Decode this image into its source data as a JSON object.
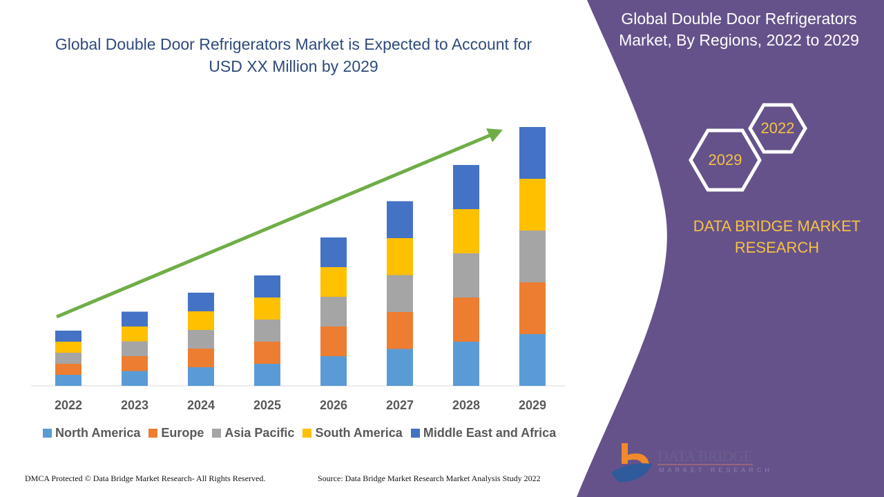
{
  "title": "Global Double Door Refrigerators Market is Expected to Account for USD XX Million by 2029",
  "side_panel": {
    "title": "Global Double Door Refrigerators Market, By Regions, 2022 to 2029",
    "hex_labels": [
      "2022",
      "2029"
    ],
    "brand": "DATA BRIDGE MARKET RESEARCH",
    "logo_text": "DATA BRIDGE",
    "logo_subtext": "MARKET RESEARCH",
    "panel_color": "#65528a",
    "accent_color": "#f6c244"
  },
  "footer": {
    "left": "DMCA Protected © Data Bridge Market Research- All Rights Reserved.",
    "right": "Source: Data Bridge Market Research Market Analysis Study 2022"
  },
  "chart_data": {
    "type": "bar",
    "stacked": true,
    "title": "Global Double Door Refrigerators Market is Expected to Account for USD XX Million by 2029",
    "xlabel": "",
    "ylabel": "",
    "ylim": [
      0,
      80
    ],
    "y_axis_shown": false,
    "grid": false,
    "legend_position": "bottom",
    "trend_arrow": {
      "color": "#70ad47",
      "from": "2022",
      "to": "2029"
    },
    "categories": [
      "2022",
      "2023",
      "2024",
      "2025",
      "2026",
      "2027",
      "2028",
      "2029"
    ],
    "series": [
      {
        "name": "North America",
        "color": "#5b9bd5",
        "values": [
          3.2,
          4.3,
          5.4,
          6.4,
          8.6,
          10.7,
          12.8,
          15
        ]
      },
      {
        "name": "Europe",
        "color": "#ed7d31",
        "values": [
          3.2,
          4.3,
          5.4,
          6.4,
          8.6,
          10.7,
          12.8,
          15
        ]
      },
      {
        "name": "Asia Pacific",
        "color": "#a5a5a5",
        "values": [
          3.2,
          4.3,
          5.4,
          6.4,
          8.6,
          10.7,
          12.8,
          15
        ]
      },
      {
        "name": "South America",
        "color": "#ffc000",
        "values": [
          3.2,
          4.3,
          5.4,
          6.4,
          8.6,
          10.7,
          12.8,
          15
        ]
      },
      {
        "name": "Middle East and Africa",
        "color": "#4472c4",
        "values": [
          3.2,
          4.3,
          5.4,
          6.4,
          8.6,
          10.7,
          12.8,
          15
        ]
      }
    ]
  }
}
